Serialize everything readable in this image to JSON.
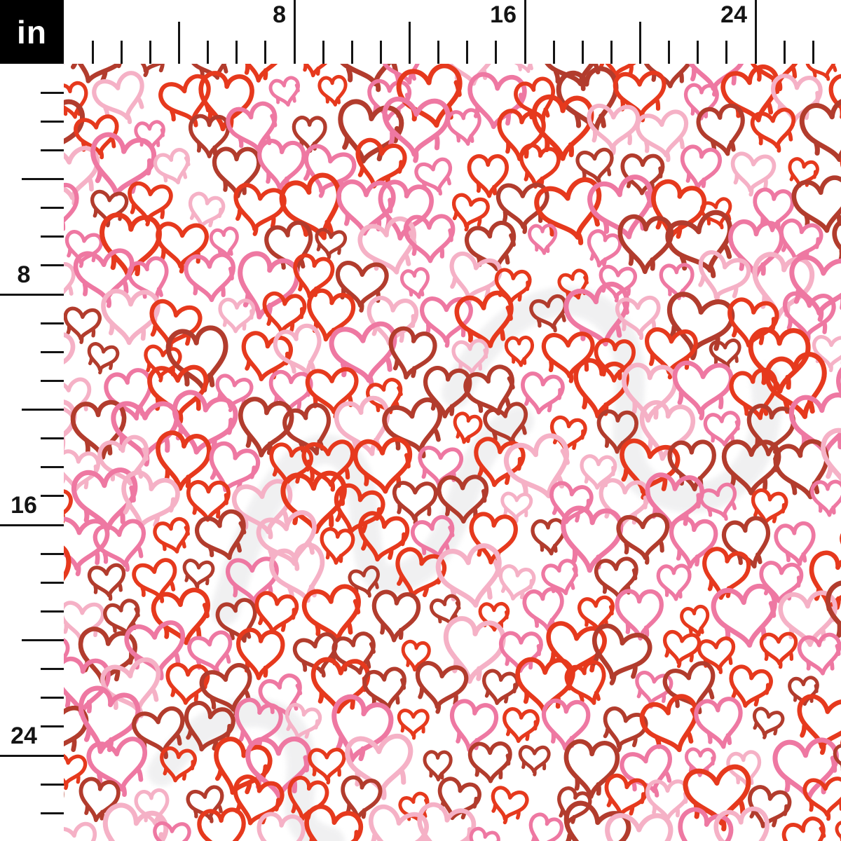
{
  "window": {
    "kind": "fabric-pattern-preview"
  },
  "ruler": {
    "unit_label": "in",
    "major_labels": [
      "8",
      "16",
      "24"
    ],
    "major_interval_inches": 8,
    "minor_interval_inches": 1,
    "visible_range_inches": 26,
    "colors": {
      "box_bg": "#000000",
      "box_fg": "#ffffff",
      "tick": "#141414",
      "label": "#141414",
      "ruler_bg": "#ffffff"
    }
  },
  "pattern": {
    "name": "dripping-graffiti-hearts",
    "description": "hand-drawn outline hearts with paint drips, staggered seamless repeat",
    "background": "#ffffff",
    "palette": [
      {
        "name": "red",
        "hex": "#e6391d",
        "weight": 0.3
      },
      {
        "name": "dark-red",
        "hex": "#b23c2d",
        "weight": 0.22
      },
      {
        "name": "pink",
        "hex": "#ee78a2",
        "weight": 0.28
      },
      {
        "name": "light-pink",
        "hex": "#f5b1c6",
        "weight": 0.2
      }
    ],
    "watermark": {
      "color": "#e9e9eb",
      "opacity": 0.65
    }
  }
}
